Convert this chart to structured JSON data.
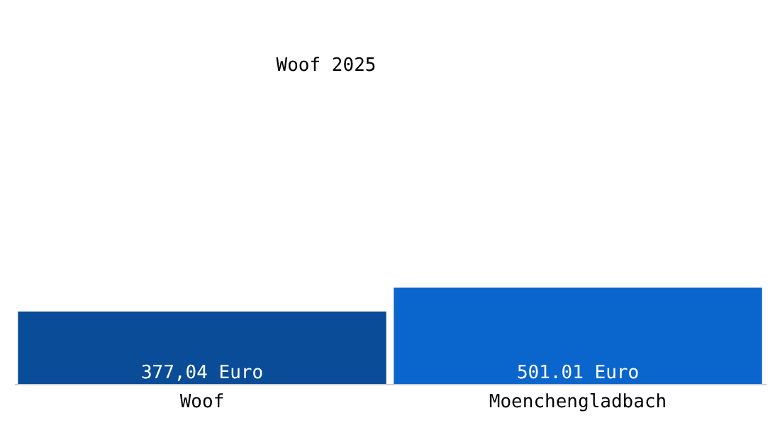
{
  "chart_data": {
    "type": "bar",
    "title": "Woof 2025",
    "categories": [
      "Woof",
      "Moenchengladbach"
    ],
    "values": [
      377.04,
      501.01
    ],
    "colors": [
      "#0a4c97",
      "#0a66cc"
    ],
    "value_labels": [
      "377,04 Euro",
      "501.01 Euro"
    ]
  }
}
